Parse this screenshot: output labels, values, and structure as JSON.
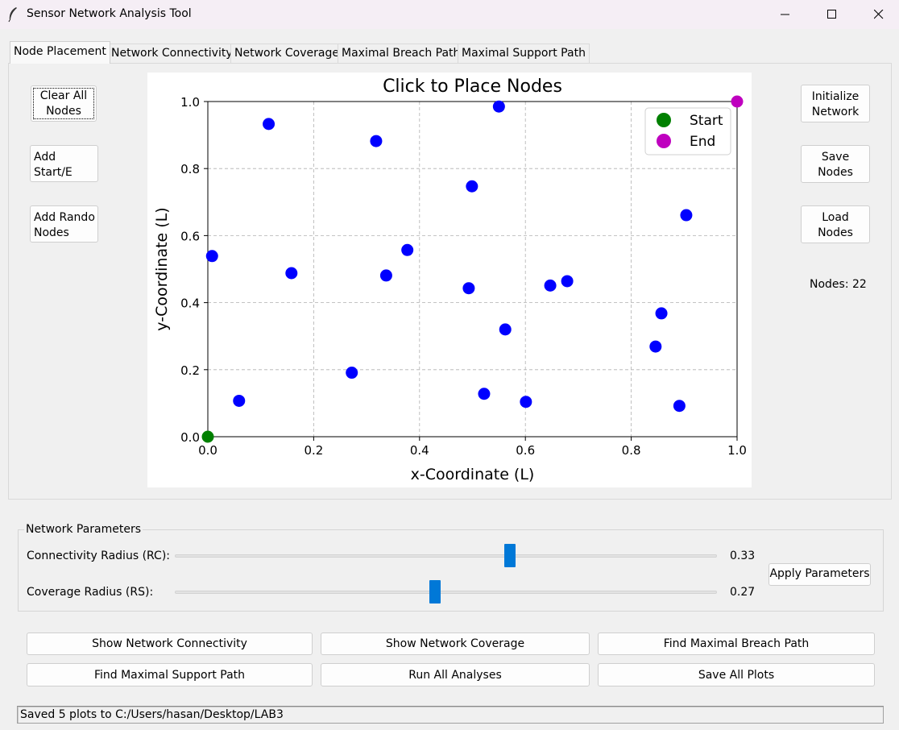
{
  "window": {
    "title": "Sensor Network Analysis Tool"
  },
  "tabs": [
    {
      "label": "Node Placement",
      "active": true
    },
    {
      "label": "Network Connectivity"
    },
    {
      "label": "Network Coverage"
    },
    {
      "label": "Maximal Breach Path"
    },
    {
      "label": "Maximal Support Path"
    }
  ],
  "left_buttons": {
    "clear_all": "Clear All\nNodes",
    "add_start_end": "Add Start/E\nNodes",
    "add_random": "Add Rando\nNodes"
  },
  "right_buttons": {
    "initialize": "Initialize\nNetwork",
    "save": "Save\nNodes",
    "load": "Load\nNodes"
  },
  "nodes_count": "Nodes: 22",
  "chart_data": {
    "type": "scatter",
    "title": "Click to Place Nodes",
    "xlabel": "x-Coordinate (L)",
    "ylabel": "y-Coordinate (L)",
    "xlim": [
      0,
      1
    ],
    "ylim": [
      0,
      1
    ],
    "xticks": [
      "0.0",
      "0.2",
      "0.4",
      "0.6",
      "0.8",
      "1.0"
    ],
    "yticks": [
      "0.0",
      "0.2",
      "0.4",
      "0.6",
      "0.8",
      "1.0"
    ],
    "grid": true,
    "legend_position": "top-right",
    "colors": {
      "node": "#0000ff",
      "start": "#008000",
      "end": "#bf00bf"
    },
    "start": {
      "name": "Start",
      "x": 0.0,
      "y": 0.0
    },
    "end": {
      "name": "End",
      "x": 1.0,
      "y": 1.0
    },
    "nodes": [
      {
        "x": 0.115,
        "y": 0.933
      },
      {
        "x": 0.318,
        "y": 0.882
      },
      {
        "x": 0.55,
        "y": 0.985
      },
      {
        "x": 0.499,
        "y": 0.747
      },
      {
        "x": 0.904,
        "y": 0.661
      },
      {
        "x": 0.008,
        "y": 0.539
      },
      {
        "x": 0.158,
        "y": 0.488
      },
      {
        "x": 0.377,
        "y": 0.557
      },
      {
        "x": 0.337,
        "y": 0.481
      },
      {
        "x": 0.493,
        "y": 0.443
      },
      {
        "x": 0.647,
        "y": 0.451
      },
      {
        "x": 0.679,
        "y": 0.464
      },
      {
        "x": 0.857,
        "y": 0.368
      },
      {
        "x": 0.562,
        "y": 0.32
      },
      {
        "x": 0.846,
        "y": 0.269
      },
      {
        "x": 0.272,
        "y": 0.191
      },
      {
        "x": 0.059,
        "y": 0.107
      },
      {
        "x": 0.522,
        "y": 0.128
      },
      {
        "x": 0.601,
        "y": 0.104
      },
      {
        "x": 0.891,
        "y": 0.092
      }
    ]
  },
  "parameters": {
    "group_label": "Network Parameters",
    "rc_label": "Connectivity Radius (RC):",
    "rc_value": "0.33",
    "rc_fraction": 0.62,
    "rs_label": "Coverage Radius (RS):",
    "rs_value": "0.27",
    "rs_fraction": 0.48,
    "apply_label": "Apply Parameters"
  },
  "action_buttons": {
    "show_connectivity": "Show Network Connectivity",
    "show_coverage": "Show Network Coverage",
    "find_breach": "Find Maximal Breach Path",
    "find_support": "Find Maximal Support Path",
    "run_all": "Run All Analyses",
    "save_plots": "Save All Plots"
  },
  "status": "Saved 5 plots to C:/Users/hasan/Desktop/LAB3"
}
